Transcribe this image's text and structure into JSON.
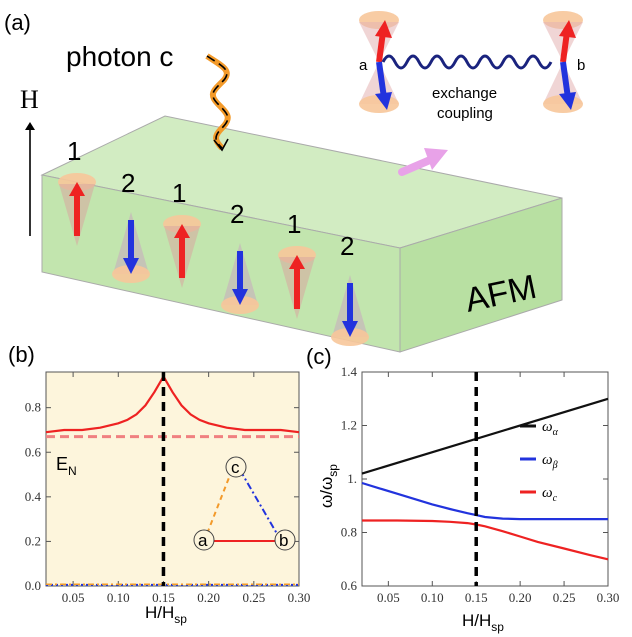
{
  "panel_a": {
    "label": "(a)",
    "photon_label": "photon c",
    "field_label": "H",
    "material_label": "AFM",
    "spin_labels": [
      "1",
      "2",
      "1",
      "2",
      "1",
      "2"
    ],
    "inset": {
      "site_a": "a",
      "site_b": "b",
      "coupling_line1": "exchange",
      "coupling_line2": "coupling"
    }
  },
  "panel_b": {
    "label": "(b)",
    "ylabel": "E",
    "ylabel_sub": "N",
    "xlabel": "H/H",
    "xlabel_sub": "sp",
    "diagram": {
      "node_a": "a",
      "node_b": "b",
      "node_c": "c"
    }
  },
  "panel_c": {
    "label": "(c)",
    "ylabel": "ω/ω",
    "ylabel_sub": "sp",
    "xlabel": "H/H",
    "xlabel_sub": "sp"
  },
  "colors": {
    "background_b": "#fdf5dc",
    "red": "#ee2222",
    "blue": "#2233dd",
    "green_slab": "#c4e6b0",
    "pink_arrow": "#e8a2e8"
  },
  "chart_data": [
    {
      "type": "line",
      "panel": "b",
      "xlim": [
        0.02,
        0.3
      ],
      "ylim": [
        0,
        0.96
      ],
      "x_ticks": [
        "0.05",
        "0.10",
        "0.15",
        "0.20",
        "0.25",
        "0.30"
      ],
      "y_ticks": [
        "0.0",
        "0.2",
        "0.4",
        "0.6",
        "0.8"
      ],
      "vline_x": 0.15,
      "series": [
        {
          "style": "solid-red",
          "x": [
            0.02,
            0.04,
            0.06,
            0.08,
            0.1,
            0.11,
            0.12,
            0.13,
            0.14,
            0.15,
            0.16,
            0.17,
            0.18,
            0.19,
            0.2,
            0.22,
            0.24,
            0.26,
            0.28,
            0.3
          ],
          "y": [
            0.69,
            0.7,
            0.7,
            0.71,
            0.73,
            0.745,
            0.77,
            0.81,
            0.87,
            0.94,
            0.87,
            0.81,
            0.77,
            0.745,
            0.73,
            0.71,
            0.7,
            0.7,
            0.7,
            0.69
          ]
        },
        {
          "style": "dashed-red",
          "x": [
            0.02,
            0.3
          ],
          "y": [
            0.67,
            0.67
          ]
        },
        {
          "style": "dotted-blue",
          "x": [
            0.02,
            0.3
          ],
          "y": [
            0.005,
            0.005
          ]
        },
        {
          "style": "dashdot-orange",
          "x": [
            0.02,
            0.3
          ],
          "y": [
            0.008,
            0.008
          ]
        }
      ]
    },
    {
      "type": "line",
      "panel": "c",
      "xlim": [
        0.02,
        0.3
      ],
      "ylim": [
        0.6,
        1.4
      ],
      "x_ticks": [
        "0.05",
        "0.10",
        "0.15",
        "0.20",
        "0.25",
        "0.30"
      ],
      "y_ticks": [
        "0.6",
        "0.8",
        "1.",
        "1.2",
        "1.4"
      ],
      "vline_x": 0.15,
      "series": [
        {
          "name": "ω",
          "sub": "α",
          "color": "#111111",
          "x": [
            0.02,
            0.3
          ],
          "y": [
            1.02,
            1.3
          ]
        },
        {
          "name": "ω",
          "sub": "β",
          "color": "#2233dd",
          "x": [
            0.02,
            0.04,
            0.06,
            0.08,
            0.1,
            0.12,
            0.14,
            0.15,
            0.16,
            0.18,
            0.2,
            0.22,
            0.25,
            0.3
          ],
          "y": [
            0.985,
            0.965,
            0.945,
            0.925,
            0.905,
            0.888,
            0.872,
            0.865,
            0.858,
            0.852,
            0.85,
            0.85,
            0.85,
            0.85
          ]
        },
        {
          "name": "ω",
          "sub": "c",
          "color": "#ee2222",
          "x": [
            0.02,
            0.06,
            0.1,
            0.12,
            0.14,
            0.15,
            0.16,
            0.18,
            0.2,
            0.22,
            0.25,
            0.28,
            0.3
          ],
          "y": [
            0.845,
            0.845,
            0.843,
            0.84,
            0.835,
            0.83,
            0.823,
            0.805,
            0.785,
            0.765,
            0.74,
            0.715,
            0.7
          ]
        }
      ]
    }
  ]
}
